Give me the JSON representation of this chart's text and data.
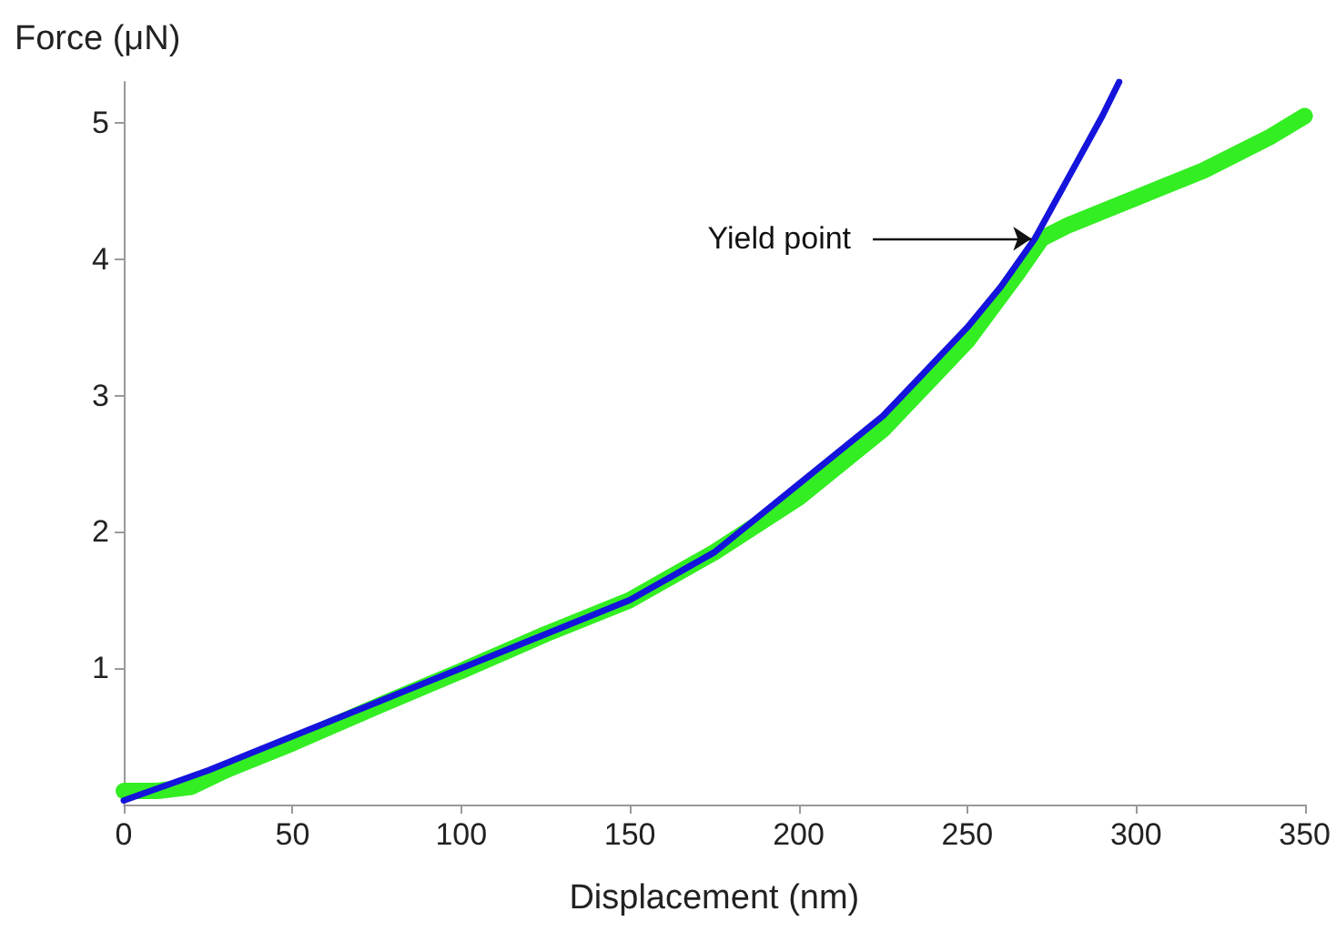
{
  "chart_data": {
    "type": "line",
    "xlabel": "Displacement (nm)",
    "ylabel": "Force (μN)",
    "xlim": [
      0,
      350
    ],
    "xticks": [
      0,
      50,
      100,
      150,
      200,
      250,
      300,
      350
    ],
    "ylim": [
      0,
      5.3
    ],
    "yticks": [
      1,
      2,
      3,
      4,
      5
    ],
    "grid": false,
    "marker": "none",
    "line_style": "solid",
    "annotations": [
      {
        "text": "Yield point",
        "x": 272,
        "y": 4.15
      }
    ],
    "series": [
      {
        "color": "#33ee22",
        "x": [
          0,
          10,
          20,
          30,
          50,
          75,
          100,
          125,
          150,
          175,
          200,
          225,
          250,
          265,
          272,
          280,
          300,
          320,
          340,
          350
        ],
        "values": [
          0.1,
          0.1,
          0.13,
          0.25,
          0.45,
          0.72,
          0.98,
          1.25,
          1.5,
          1.85,
          2.25,
          2.75,
          3.4,
          3.9,
          4.15,
          4.25,
          4.45,
          4.65,
          4.9,
          5.05
        ]
      },
      {
        "color": "#1414dc",
        "x": [
          0,
          25,
          50,
          75,
          100,
          125,
          150,
          175,
          200,
          225,
          250,
          260,
          270,
          280,
          290,
          295
        ],
        "values": [
          0.03,
          0.25,
          0.5,
          0.75,
          1.0,
          1.25,
          1.5,
          1.85,
          2.35,
          2.85,
          3.5,
          3.8,
          4.15,
          4.6,
          5.05,
          5.3
        ]
      }
    ]
  }
}
